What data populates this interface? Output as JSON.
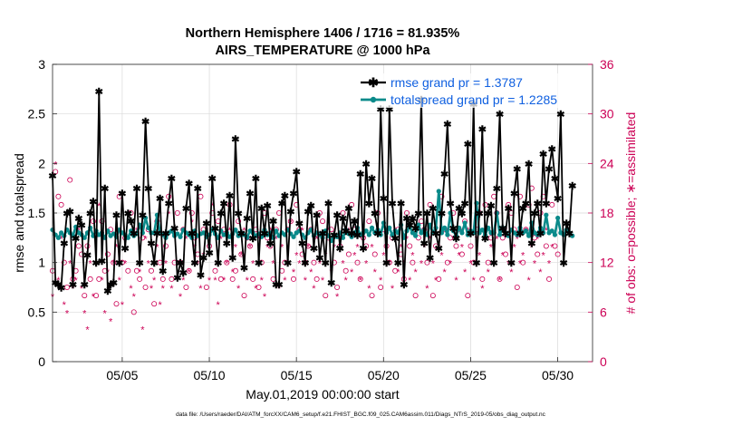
{
  "chart_data": {
    "type": "line",
    "title_line1": "Northern Hemisphere 1406 / 1716 = 81.935%",
    "title_line2": "AIRS_TEMPERATURE @ 1000 hPa",
    "xlabel": "May.01,2019 00:00:00 start",
    "ylabel_left": "rmse and totalspread",
    "ylabel_right": "# of obs: o=possible; ∗=assimilated",
    "footer": "data file: /Users/raeder/DAI/ATM_forcXX/CAM6_setup/f.e21.FHIST_BGC.f09_025.CAM6assim.011/Diags_NTrS_2019-05/obs_diag_output.nc",
    "xlim": [
      1,
      32
    ],
    "ylim_left": [
      0,
      3
    ],
    "ylim_right": [
      0,
      36
    ],
    "x_ticks": [
      5,
      10,
      15,
      20,
      25,
      30
    ],
    "x_tick_labels": [
      "05/05",
      "05/10",
      "05/15",
      "05/20",
      "05/25",
      "05/30"
    ],
    "y_ticks_left": [
      0,
      0.5,
      1,
      1.5,
      2,
      2.5,
      3
    ],
    "y_tick_labels_left": [
      "0",
      "0.5",
      "1",
      "1.5",
      "2",
      "2.5",
      "3"
    ],
    "y_ticks_right": [
      0,
      6,
      12,
      18,
      24,
      30,
      36
    ],
    "y_tick_labels_right": [
      "0",
      "6",
      "12",
      "18",
      "24",
      "30",
      "36"
    ],
    "colors": {
      "rmse": "#000000",
      "spread": "#0a8a8a",
      "obs": "#cc0055",
      "legend_text": "#1060e0"
    },
    "series": [
      {
        "name": "rmse grand pr = 1.3787",
        "values": [
          1.88,
          0.8,
          0.78,
          0.75,
          1.2,
          1.5,
          1.52,
          0.78,
          1.25,
          1.45,
          1.38,
          0.78,
          1.08,
          1.5,
          1.62,
          1.0,
          2.73,
          1.02,
          1.75,
          0.72,
          0.78,
          0.8,
          1.48,
          1.0,
          1.7,
          1.15,
          1.5,
          1.42,
          1.3,
          1.75,
          1.0,
          1.48,
          2.43,
          1.75,
          1.2,
          1.0,
          1.3,
          1.65,
          0.92,
          1.3,
          1.6,
          1.85,
          1.35,
          0.85,
          1.0,
          0.9,
          1.55,
          1.8,
          1.3,
          1.0,
          1.75,
          0.88,
          1.05,
          1.4,
          1.1,
          1.85,
          1.35,
          1.0,
          1.5,
          1.6,
          1.2,
          1.68,
          1.05,
          2.25,
          1.5,
          1.3,
          0.95,
          1.45,
          1.7,
          1.25,
          1.85,
          1.0,
          1.55,
          1.3,
          1.58,
          1.2,
          1.42,
          0.78,
          0.78,
          1.6,
          1.68,
          1.0,
          1.52,
          1.7,
          1.92,
          1.4,
          1.2,
          1.0,
          1.52,
          1.58,
          1.15,
          1.48,
          1.05,
          1.3,
          1.0,
          1.6,
          0.8,
          1.28,
          1.48,
          1.15,
          1.45,
          1.32,
          1.55,
          1.3,
          1.42,
          1.28,
          1.9,
          1.15,
          2.0,
          1.6,
          1.85,
          1.5,
          1.3,
          2.55,
          1.65,
          1.0,
          2.55,
          1.6,
          1.25,
          1.0,
          1.6,
          0.78,
          1.45,
          1.38,
          1.45,
          1.35,
          1.5,
          2.65,
          1.2,
          1.5,
          1.05,
          1.55,
          1.3,
          1.15,
          1.5,
          1.9,
          2.4,
          1.6,
          1.35,
          1.25,
          1.55,
          1.5,
          1.6,
          2.2,
          1.3,
          2.6,
          1.0,
          1.5,
          2.35,
          1.25,
          1.5,
          1.58,
          1.0,
          1.75,
          2.5,
          1.35,
          1.3,
          1.55,
          1.0,
          1.7,
          1.95,
          1.3,
          1.55,
          1.6,
          2.0,
          1.2,
          1.5,
          1.6,
          1.3,
          2.1,
          1.6,
          1.95,
          2.15,
          1.85,
          1.65,
          2.5,
          1.0,
          1.4,
          1.3,
          1.78
        ],
        "x_start": 1.0,
        "x_step": 0.1667
      },
      {
        "name": "totalspread grand pr = 1.2285",
        "values": [
          1.33,
          1.28,
          1.25,
          1.3,
          1.27,
          1.33,
          1.3,
          1.27,
          1.36,
          1.3,
          1.28,
          1.25,
          1.3,
          1.35,
          1.27,
          1.32,
          1.28,
          1.3,
          1.25,
          1.32,
          1.27,
          1.29,
          1.26,
          1.33,
          1.3,
          1.28,
          1.25,
          1.32,
          1.27,
          1.29,
          1.38,
          1.3,
          1.45,
          1.35,
          1.3,
          1.3,
          1.48,
          1.3,
          1.28,
          1.25,
          1.3,
          1.32,
          1.27,
          1.29,
          1.26,
          1.33,
          1.3,
          1.28,
          1.25,
          1.32,
          1.27,
          1.29,
          1.3,
          1.26,
          1.28,
          1.33,
          1.29,
          1.25,
          1.32,
          1.28,
          1.3,
          1.26,
          1.29,
          1.33,
          1.27,
          1.3,
          1.28,
          1.25,
          1.32,
          1.3,
          1.27,
          1.29,
          1.26,
          1.33,
          1.28,
          1.3,
          1.25,
          1.32,
          1.27,
          1.3,
          1.28,
          1.33,
          1.29,
          1.26,
          1.3,
          1.32,
          1.28,
          1.25,
          1.3,
          1.33,
          1.27,
          1.3,
          1.28,
          1.25,
          1.32,
          1.27,
          1.22,
          1.28,
          1.26,
          1.3,
          1.25,
          1.33,
          1.29,
          1.26,
          1.3,
          1.35,
          1.28,
          1.3,
          1.32,
          1.28,
          1.35,
          1.3,
          1.33,
          1.28,
          1.4,
          1.3,
          1.35,
          1.28,
          1.32,
          1.3,
          1.38,
          1.25,
          1.32,
          1.36,
          1.3,
          1.27,
          1.38,
          1.3,
          1.33,
          1.28,
          1.38,
          1.3,
          1.35,
          1.72,
          1.3,
          1.35,
          1.28,
          1.5,
          1.32,
          1.27,
          1.35,
          1.3,
          1.4,
          1.28,
          1.32,
          1.3,
          1.6,
          1.3,
          1.33,
          1.28,
          1.35,
          1.3,
          1.3,
          1.5,
          1.28,
          1.35,
          1.3,
          1.27,
          1.33,
          1.3,
          1.28,
          1.35,
          1.3,
          1.32,
          1.27,
          1.4,
          1.3,
          1.28,
          1.35,
          1.3,
          1.48,
          1.3,
          1.32,
          1.28,
          1.45,
          1.3,
          1.28,
          1.33,
          1.3,
          1.27
        ],
        "x_start": 1.0,
        "x_step": 0.1667
      }
    ],
    "obs_possible_note": "open circles, right axis",
    "obs_assimilated_note": "asterisks, right axis",
    "obs_possible": [
      11,
      23,
      20,
      19,
      12,
      9,
      22,
      10,
      11,
      14,
      13,
      8,
      14,
      10,
      17,
      8,
      10,
      17,
      11,
      13,
      16,
      12,
      7,
      20,
      12,
      15,
      11,
      18,
      6,
      11,
      10,
      15,
      9,
      16,
      11,
      7,
      17,
      12,
      10,
      14,
      20,
      10,
      12,
      18,
      12,
      16,
      9,
      11,
      18,
      15,
      13,
      20,
      16,
      9,
      14,
      18,
      11,
      17,
      10,
      16,
      12,
      19,
      10,
      11,
      17,
      13,
      8,
      15,
      14,
      10,
      16,
      9,
      12,
      18,
      15,
      14,
      10,
      16,
      18,
      11,
      12,
      16,
      17,
      10,
      19,
      16,
      13,
      12,
      14,
      16,
      12,
      10,
      18,
      17,
      8,
      15,
      16,
      12,
      9,
      14,
      18,
      11,
      13,
      19,
      16,
      12,
      10,
      15,
      14,
      17,
      8,
      13,
      18,
      9,
      16,
      14,
      12,
      15,
      11,
      16,
      13,
      10,
      18,
      14,
      12,
      8,
      15,
      17,
      16,
      12,
      19,
      8,
      14,
      10,
      20,
      16,
      12,
      15,
      18,
      14,
      16,
      13,
      17,
      8,
      14,
      12,
      16,
      18,
      10,
      19,
      12,
      15,
      20,
      18,
      10,
      15,
      13,
      19,
      18,
      16,
      9,
      20,
      12,
      16,
      19,
      21,
      15,
      13,
      18,
      20,
      14,
      10,
      19,
      14,
      13
    ],
    "obs_assimilated": [
      8,
      24,
      10,
      15,
      7,
      6,
      12,
      9,
      10,
      16,
      9,
      6,
      4,
      12,
      8,
      15,
      19,
      10,
      6,
      11,
      5,
      12,
      14,
      10,
      7,
      12,
      15,
      9,
      8,
      16,
      11,
      4,
      15,
      12,
      9,
      10,
      14,
      7,
      9,
      12,
      18,
      9,
      16,
      12,
      8,
      10,
      15,
      11,
      17,
      14,
      12,
      9,
      13,
      16,
      10,
      19,
      10,
      7,
      15,
      10,
      12,
      16,
      11,
      14,
      9,
      13,
      16,
      10,
      14,
      12,
      9,
      15,
      10,
      8,
      14,
      16,
      12,
      15,
      9,
      14,
      10,
      12,
      17,
      11,
      13,
      12,
      16,
      10,
      14,
      11,
      9,
      15,
      12,
      10,
      13,
      16,
      11,
      14,
      8,
      15,
      12,
      10,
      16,
      11,
      13,
      14,
      10,
      15,
      12,
      9,
      14,
      11,
      16,
      10,
      13,
      15,
      12,
      9,
      16,
      11,
      14,
      12,
      15,
      10,
      13,
      11,
      16,
      12,
      14,
      9,
      15,
      12,
      10,
      14,
      13,
      11,
      16,
      12,
      15,
      10,
      13,
      14,
      11,
      16,
      12,
      10,
      15,
      13,
      9,
      16,
      11,
      14,
      12,
      15,
      10,
      13,
      16,
      12,
      11,
      14,
      15,
      12,
      13,
      16,
      10,
      14,
      12,
      15,
      11,
      13,
      16,
      12,
      14
    ],
    "legend": [
      {
        "label": "rmse grand pr = 1.3787",
        "series": "rmse"
      },
      {
        "label": "totalspread grand pr = 1.2285",
        "series": "spread"
      }
    ]
  }
}
